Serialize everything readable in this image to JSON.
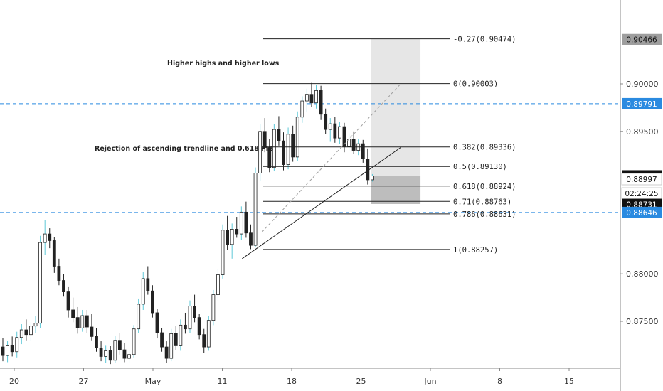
{
  "chart_data": {
    "type": "candlestick",
    "instrument_note": "",
    "y_axis": {
      "range": [
        0.872,
        0.909
      ],
      "tick_labels": [
        "0.90000",
        "0.89500",
        "0.88000",
        "0.87500"
      ],
      "tick_values": [
        0.9,
        0.895,
        0.88,
        0.875
      ]
    },
    "x_axis": {
      "tick_labels": [
        "20",
        "27",
        "May",
        "11",
        "18",
        "25",
        "Jun",
        "8",
        "15"
      ],
      "tick_dates": [
        "2020-04-20",
        "2020-04-27",
        "2020-05-04",
        "2020-05-11",
        "2020-05-18",
        "2020-05-25",
        "2020-06-01",
        "2020-06-08",
        "2020-06-15"
      ]
    },
    "fibonacci": [
      {
        "label": "-0.27(0.90474)",
        "value": 0.90474
      },
      {
        "label": "0(0.90003)",
        "value": 0.90003
      },
      {
        "label": "0.382(0.89336)",
        "value": 0.89336
      },
      {
        "label": "0.5(0.89130)",
        "value": 0.8913
      },
      {
        "label": "0.618(0.88924)",
        "value": 0.88924
      },
      {
        "label": "0.71(0.88763)",
        "value": 0.88763
      },
      {
        "label": "0.786(0.88631)",
        "value": 0.88631
      },
      {
        "label": "1(0.88257)",
        "value": 0.88257
      }
    ],
    "horizontal_levels": [
      {
        "value": 0.89791,
        "style": "dashed",
        "color": "#2a8ae0"
      },
      {
        "value": 0.88646,
        "style": "dashed",
        "color": "#2a8ae0"
      },
      {
        "value": 0.89031,
        "style": "dotted",
        "color": "#555555"
      }
    ],
    "price_tags": [
      {
        "text": "0.90466",
        "value": 0.90466,
        "bg": "#9e9e9e",
        "fg": "#111111"
      },
      {
        "text": "0.89791",
        "value": 0.89791,
        "bg": "#2a8ae0",
        "fg": "#ffffff"
      },
      {
        "text": "0.89031",
        "value": 0.89031,
        "bg": "#111111",
        "fg": "#ffffff"
      },
      {
        "text": "0.88997",
        "value": 0.88997,
        "bg": "#ffffff",
        "fg": "#111111",
        "border": true
      },
      {
        "text": "02:24:25",
        "value": 0.88847,
        "bg": "#ffffff",
        "fg": "#111111",
        "border": true
      },
      {
        "text": "0.88731",
        "value": 0.88731,
        "bg": "#111111",
        "fg": "#ffffff"
      },
      {
        "text": "0.88646",
        "value": 0.88646,
        "bg": "#2a8ae0",
        "fg": "#ffffff"
      }
    ],
    "annotations": [
      {
        "text": "Higher highs and higher lows"
      },
      {
        "text": "Rejection of ascending trendline and 0.618 FIB"
      }
    ],
    "trendlines": [
      {
        "x1": "2020-05-13",
        "y1": 0.8816,
        "x2": "2020-05-29",
        "y2": 0.8933,
        "style": "solid"
      },
      {
        "x1": "2020-05-15",
        "y1": 0.8844,
        "x2": "2020-05-29",
        "y2": 0.9,
        "style": "dashed"
      }
    ],
    "position_box": {
      "x_start": "2020-05-26",
      "x_end": "2020-05-31",
      "upper": {
        "top": 0.90474,
        "bottom": 0.89031
      },
      "lower": {
        "top": 0.89031,
        "bottom": 0.88735
      }
    },
    "candles": [
      {
        "o": 0.8723,
        "h": 0.8732,
        "l": 0.8708,
        "c": 0.8714
      },
      {
        "o": 0.8714,
        "h": 0.8729,
        "l": 0.8707,
        "c": 0.8725
      },
      {
        "o": 0.8725,
        "h": 0.8734,
        "l": 0.8713,
        "c": 0.8718
      },
      {
        "o": 0.8718,
        "h": 0.8739,
        "l": 0.8712,
        "c": 0.8733
      },
      {
        "o": 0.8733,
        "h": 0.8747,
        "l": 0.8726,
        "c": 0.8741
      },
      {
        "o": 0.8741,
        "h": 0.8752,
        "l": 0.873,
        "c": 0.8736
      },
      {
        "o": 0.8736,
        "h": 0.8749,
        "l": 0.8729,
        "c": 0.8745
      },
      {
        "o": 0.8745,
        "h": 0.8756,
        "l": 0.8738,
        "c": 0.8748
      },
      {
        "o": 0.8748,
        "h": 0.884,
        "l": 0.8743,
        "c": 0.8833
      },
      {
        "o": 0.8833,
        "h": 0.8857,
        "l": 0.882,
        "c": 0.8842
      },
      {
        "o": 0.8842,
        "h": 0.8848,
        "l": 0.8827,
        "c": 0.8835
      },
      {
        "o": 0.8835,
        "h": 0.8839,
        "l": 0.8801,
        "c": 0.8808
      },
      {
        "o": 0.8808,
        "h": 0.8816,
        "l": 0.8788,
        "c": 0.8793
      },
      {
        "o": 0.8793,
        "h": 0.88,
        "l": 0.8776,
        "c": 0.8781
      },
      {
        "o": 0.8781,
        "h": 0.8786,
        "l": 0.8754,
        "c": 0.8762
      },
      {
        "o": 0.8762,
        "h": 0.8775,
        "l": 0.8749,
        "c": 0.8754
      },
      {
        "o": 0.8754,
        "h": 0.8765,
        "l": 0.8737,
        "c": 0.8743
      },
      {
        "o": 0.8743,
        "h": 0.8762,
        "l": 0.8739,
        "c": 0.8756
      },
      {
        "o": 0.8756,
        "h": 0.8762,
        "l": 0.8738,
        "c": 0.8744
      },
      {
        "o": 0.8744,
        "h": 0.8758,
        "l": 0.873,
        "c": 0.8734
      },
      {
        "o": 0.8734,
        "h": 0.8743,
        "l": 0.8718,
        "c": 0.8722
      },
      {
        "o": 0.8722,
        "h": 0.8729,
        "l": 0.8708,
        "c": 0.8713
      },
      {
        "o": 0.8713,
        "h": 0.8725,
        "l": 0.8706,
        "c": 0.8719
      },
      {
        "o": 0.8719,
        "h": 0.8724,
        "l": 0.8705,
        "c": 0.8709
      },
      {
        "o": 0.8709,
        "h": 0.8735,
        "l": 0.8706,
        "c": 0.873
      },
      {
        "o": 0.873,
        "h": 0.8738,
        "l": 0.8715,
        "c": 0.872
      },
      {
        "o": 0.872,
        "h": 0.8727,
        "l": 0.8707,
        "c": 0.8711
      },
      {
        "o": 0.8711,
        "h": 0.8719,
        "l": 0.8706,
        "c": 0.8715
      },
      {
        "o": 0.8715,
        "h": 0.8746,
        "l": 0.8712,
        "c": 0.8742
      },
      {
        "o": 0.8742,
        "h": 0.8774,
        "l": 0.8738,
        "c": 0.8768
      },
      {
        "o": 0.8768,
        "h": 0.8802,
        "l": 0.8762,
        "c": 0.8795
      },
      {
        "o": 0.8795,
        "h": 0.8808,
        "l": 0.8778,
        "c": 0.8782
      },
      {
        "o": 0.8782,
        "h": 0.8788,
        "l": 0.8754,
        "c": 0.8759
      },
      {
        "o": 0.8759,
        "h": 0.8763,
        "l": 0.8732,
        "c": 0.8738
      },
      {
        "o": 0.8738,
        "h": 0.8743,
        "l": 0.8718,
        "c": 0.8723
      },
      {
        "o": 0.8723,
        "h": 0.8729,
        "l": 0.8706,
        "c": 0.8711
      },
      {
        "o": 0.8711,
        "h": 0.8742,
        "l": 0.8708,
        "c": 0.8737
      },
      {
        "o": 0.8737,
        "h": 0.8745,
        "l": 0.872,
        "c": 0.8725
      },
      {
        "o": 0.8725,
        "h": 0.8752,
        "l": 0.8719,
        "c": 0.8746
      },
      {
        "o": 0.8746,
        "h": 0.8759,
        "l": 0.8737,
        "c": 0.8742
      },
      {
        "o": 0.8742,
        "h": 0.8772,
        "l": 0.8738,
        "c": 0.8766
      },
      {
        "o": 0.8766,
        "h": 0.8778,
        "l": 0.8749,
        "c": 0.8754
      },
      {
        "o": 0.8754,
        "h": 0.8758,
        "l": 0.8731,
        "c": 0.8736
      },
      {
        "o": 0.8736,
        "h": 0.8742,
        "l": 0.8717,
        "c": 0.8723
      },
      {
        "o": 0.8723,
        "h": 0.8756,
        "l": 0.8719,
        "c": 0.8751
      },
      {
        "o": 0.8751,
        "h": 0.8783,
        "l": 0.8746,
        "c": 0.8778
      },
      {
        "o": 0.8778,
        "h": 0.8805,
        "l": 0.8772,
        "c": 0.8799
      },
      {
        "o": 0.8799,
        "h": 0.8852,
        "l": 0.8795,
        "c": 0.8846
      },
      {
        "o": 0.8846,
        "h": 0.8861,
        "l": 0.8825,
        "c": 0.8831
      },
      {
        "o": 0.8831,
        "h": 0.8853,
        "l": 0.8816,
        "c": 0.8847
      },
      {
        "o": 0.8847,
        "h": 0.886,
        "l": 0.8838,
        "c": 0.8842
      },
      {
        "o": 0.8842,
        "h": 0.8871,
        "l": 0.8836,
        "c": 0.8865
      },
      {
        "o": 0.8865,
        "h": 0.8876,
        "l": 0.8838,
        "c": 0.8843
      },
      {
        "o": 0.8843,
        "h": 0.8852,
        "l": 0.8826,
        "c": 0.883
      },
      {
        "o": 0.883,
        "h": 0.8912,
        "l": 0.8828,
        "c": 0.8906
      },
      {
        "o": 0.8906,
        "h": 0.8958,
        "l": 0.8898,
        "c": 0.895
      },
      {
        "o": 0.895,
        "h": 0.8964,
        "l": 0.8928,
        "c": 0.8933
      },
      {
        "o": 0.8933,
        "h": 0.8942,
        "l": 0.8907,
        "c": 0.8912
      },
      {
        "o": 0.8912,
        "h": 0.8958,
        "l": 0.8908,
        "c": 0.8952
      },
      {
        "o": 0.8952,
        "h": 0.8966,
        "l": 0.8935,
        "c": 0.894
      },
      {
        "o": 0.894,
        "h": 0.8949,
        "l": 0.8909,
        "c": 0.8915
      },
      {
        "o": 0.8915,
        "h": 0.8954,
        "l": 0.891,
        "c": 0.8947
      },
      {
        "o": 0.8947,
        "h": 0.8956,
        "l": 0.8918,
        "c": 0.8923
      },
      {
        "o": 0.8923,
        "h": 0.8971,
        "l": 0.8919,
        "c": 0.8965
      },
      {
        "o": 0.8965,
        "h": 0.8987,
        "l": 0.8959,
        "c": 0.8982
      },
      {
        "o": 0.8982,
        "h": 0.8995,
        "l": 0.897,
        "c": 0.8989
      },
      {
        "o": 0.8989,
        "h": 0.9001,
        "l": 0.8976,
        "c": 0.898
      },
      {
        "o": 0.898,
        "h": 0.8999,
        "l": 0.8974,
        "c": 0.8993
      },
      {
        "o": 0.8993,
        "h": 0.8998,
        "l": 0.8962,
        "c": 0.8968
      },
      {
        "o": 0.8968,
        "h": 0.8974,
        "l": 0.8947,
        "c": 0.8952
      },
      {
        "o": 0.8952,
        "h": 0.8964,
        "l": 0.8939,
        "c": 0.8958
      },
      {
        "o": 0.8958,
        "h": 0.8965,
        "l": 0.8938,
        "c": 0.8943
      },
      {
        "o": 0.8943,
        "h": 0.896,
        "l": 0.8937,
        "c": 0.8955
      },
      {
        "o": 0.8955,
        "h": 0.8959,
        "l": 0.8928,
        "c": 0.8934
      },
      {
        "o": 0.8934,
        "h": 0.8948,
        "l": 0.893,
        "c": 0.8942
      },
      {
        "o": 0.8942,
        "h": 0.895,
        "l": 0.8926,
        "c": 0.893
      },
      {
        "o": 0.893,
        "h": 0.8942,
        "l": 0.8925,
        "c": 0.8937
      },
      {
        "o": 0.8937,
        "h": 0.8941,
        "l": 0.8917,
        "c": 0.8921
      },
      {
        "o": 0.8921,
        "h": 0.8932,
        "l": 0.8894,
        "c": 0.8899
      },
      {
        "o": 0.8899,
        "h": 0.8905,
        "l": 0.8897,
        "c": 0.89031
      }
    ]
  }
}
